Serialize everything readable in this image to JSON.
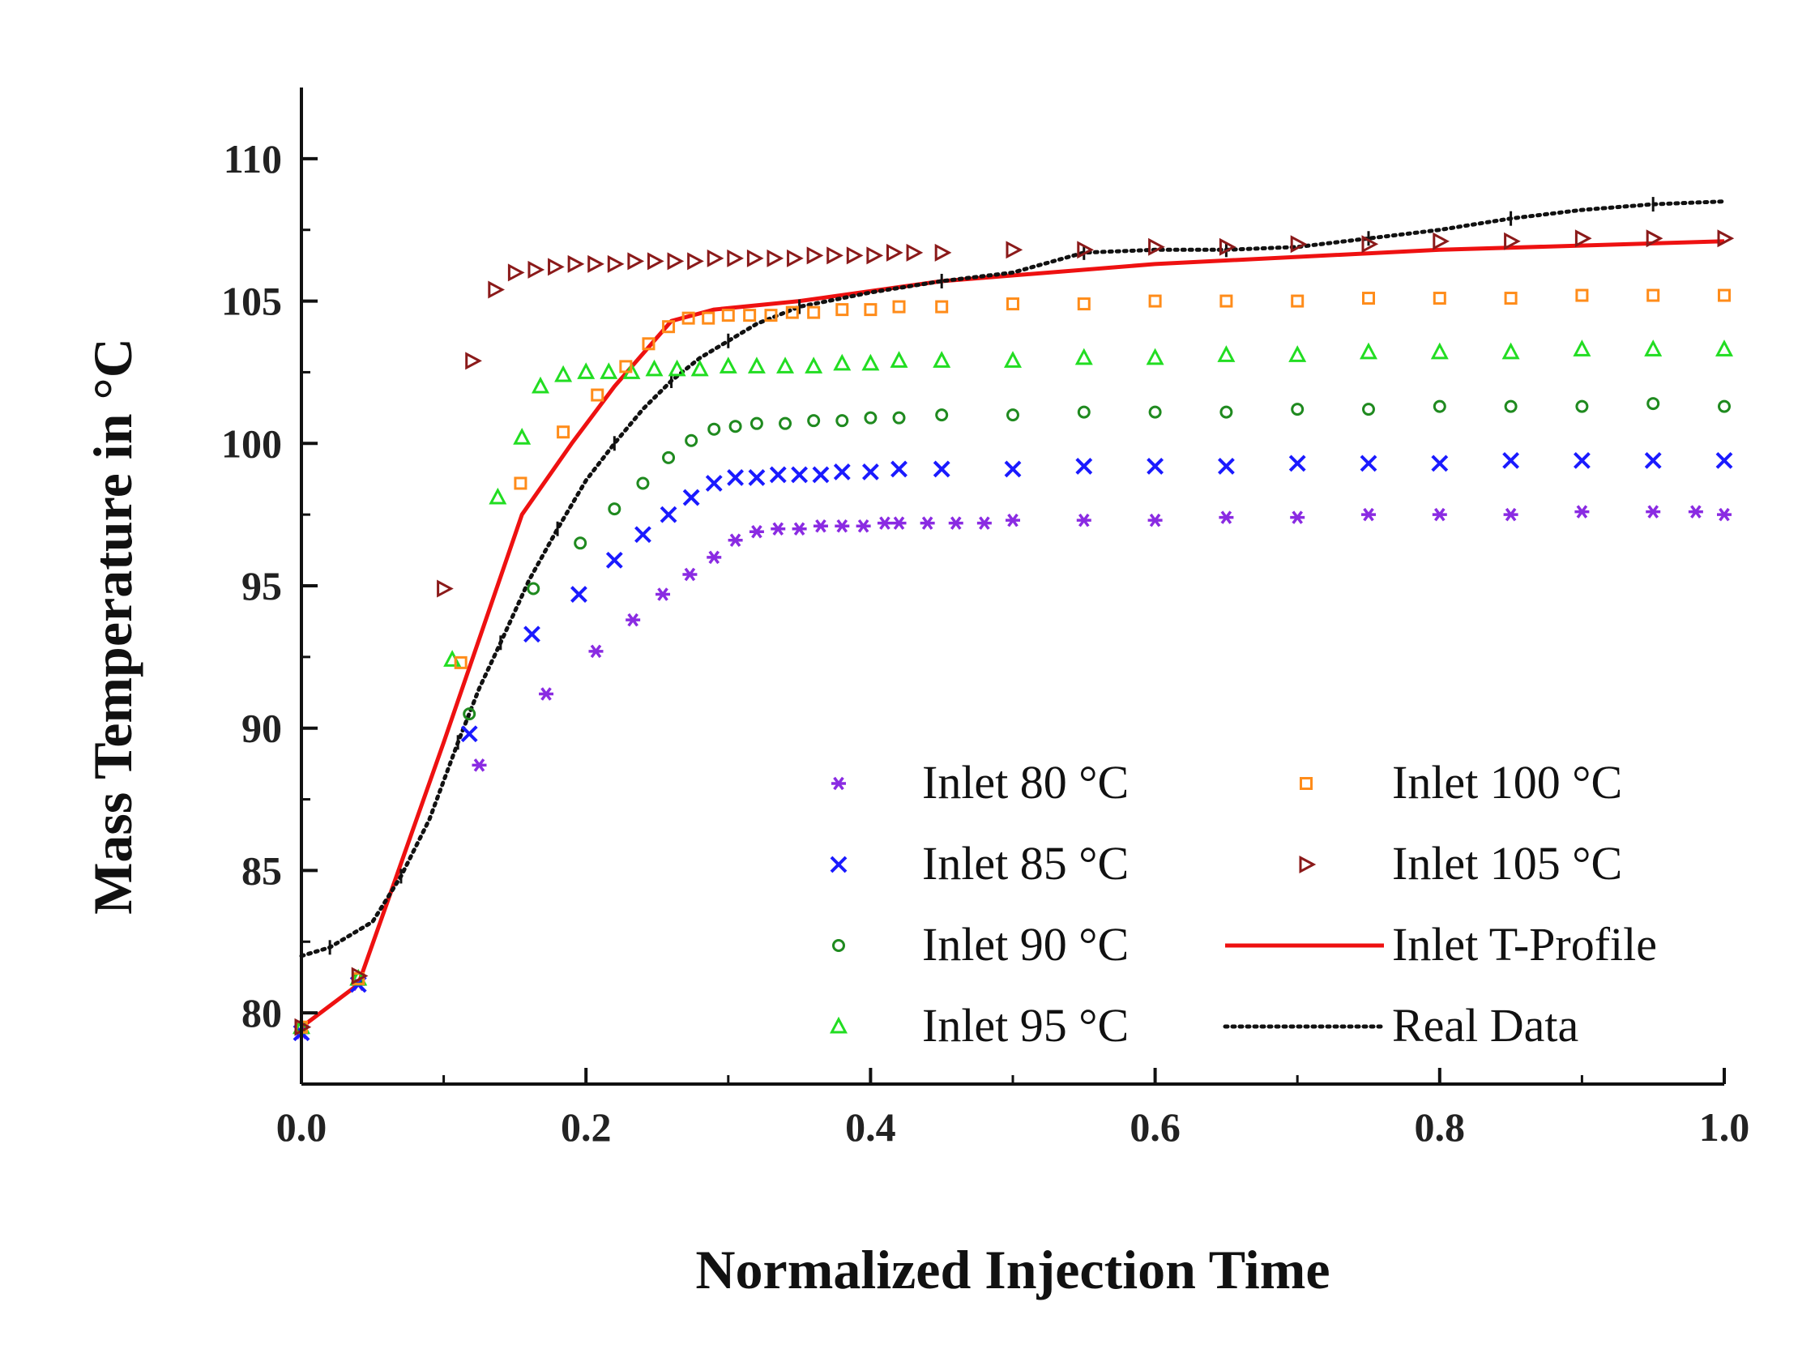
{
  "chart_data": {
    "type": "line",
    "title": "",
    "xlabel": "Normalized Injection Time",
    "ylabel": "Mass Temperature in °C",
    "xlim": [
      0.0,
      1.0
    ],
    "ylim": [
      77.5,
      112.5
    ],
    "xticks": [
      0.0,
      0.2,
      0.4,
      0.6,
      0.8,
      1.0
    ],
    "xtick_labels": [
      "0.0",
      "0.2",
      "0.4",
      "0.6",
      "0.8",
      "1.0"
    ],
    "yticks": [
      80,
      85,
      90,
      95,
      100,
      105,
      110
    ],
    "ytick_labels": [
      "80",
      "85",
      "90",
      "95",
      "100",
      "105",
      "110"
    ],
    "grid": false,
    "legend_position": "bottom-right",
    "series": [
      {
        "name": "Inlet 80 °C",
        "marker": "asterisk",
        "color": "#8a2be2",
        "x": [
          0.0,
          0.04,
          0.125,
          0.172,
          0.207,
          0.233,
          0.254,
          0.273,
          0.29,
          0.305,
          0.32,
          0.335,
          0.35,
          0.365,
          0.38,
          0.395,
          0.41,
          0.42,
          0.44,
          0.46,
          0.48,
          0.5,
          0.55,
          0.6,
          0.65,
          0.7,
          0.75,
          0.8,
          0.85,
          0.9,
          0.95,
          0.98,
          1.0
        ],
        "y": [
          79.3,
          81.0,
          88.7,
          91.2,
          92.7,
          93.8,
          94.7,
          95.4,
          96.0,
          96.6,
          96.9,
          97.0,
          97.0,
          97.1,
          97.1,
          97.1,
          97.2,
          97.2,
          97.2,
          97.2,
          97.2,
          97.3,
          97.3,
          97.3,
          97.4,
          97.4,
          97.5,
          97.5,
          97.5,
          97.6,
          97.6,
          97.6,
          97.5
        ]
      },
      {
        "name": "Inlet 85 °C",
        "marker": "x",
        "color": "#1a1aff",
        "x": [
          0.0,
          0.04,
          0.118,
          0.162,
          0.195,
          0.22,
          0.24,
          0.258,
          0.274,
          0.29,
          0.305,
          0.32,
          0.335,
          0.35,
          0.365,
          0.38,
          0.4,
          0.42,
          0.45,
          0.5,
          0.55,
          0.6,
          0.65,
          0.7,
          0.75,
          0.8,
          0.85,
          0.9,
          0.95,
          1.0
        ],
        "y": [
          79.3,
          81.0,
          89.8,
          93.3,
          94.7,
          95.9,
          96.8,
          97.5,
          98.1,
          98.6,
          98.8,
          98.8,
          98.9,
          98.9,
          98.9,
          99.0,
          99.0,
          99.1,
          99.1,
          99.1,
          99.2,
          99.2,
          99.2,
          99.3,
          99.3,
          99.3,
          99.4,
          99.4,
          99.4,
          99.4
        ]
      },
      {
        "name": "Inlet 90 °C",
        "marker": "circle",
        "color": "#1f8a1f",
        "x": [
          0.0,
          0.04,
          0.118,
          0.163,
          0.196,
          0.22,
          0.24,
          0.258,
          0.274,
          0.29,
          0.305,
          0.32,
          0.34,
          0.36,
          0.38,
          0.4,
          0.42,
          0.45,
          0.5,
          0.55,
          0.6,
          0.65,
          0.7,
          0.75,
          0.8,
          0.85,
          0.9,
          0.95,
          1.0
        ],
        "y": [
          79.5,
          81.2,
          90.5,
          94.9,
          96.5,
          97.7,
          98.6,
          99.5,
          100.1,
          100.5,
          100.6,
          100.7,
          100.7,
          100.8,
          100.8,
          100.9,
          100.9,
          101.0,
          101.0,
          101.1,
          101.1,
          101.1,
          101.2,
          101.2,
          101.3,
          101.3,
          101.3,
          101.4,
          101.3
        ]
      },
      {
        "name": "Inlet 95 °C",
        "marker": "triangle-up",
        "color": "#22dd22",
        "x": [
          0.0,
          0.04,
          0.106,
          0.138,
          0.155,
          0.168,
          0.184,
          0.2,
          0.216,
          0.232,
          0.248,
          0.264,
          0.28,
          0.3,
          0.32,
          0.34,
          0.36,
          0.38,
          0.4,
          0.42,
          0.45,
          0.5,
          0.55,
          0.6,
          0.65,
          0.7,
          0.75,
          0.8,
          0.85,
          0.9,
          0.95,
          1.0
        ],
        "y": [
          79.5,
          81.2,
          92.4,
          98.1,
          100.2,
          102.0,
          102.4,
          102.5,
          102.5,
          102.5,
          102.6,
          102.6,
          102.6,
          102.7,
          102.7,
          102.7,
          102.7,
          102.8,
          102.8,
          102.9,
          102.9,
          102.9,
          103.0,
          103.0,
          103.1,
          103.1,
          103.2,
          103.2,
          103.2,
          103.3,
          103.3,
          103.3
        ]
      },
      {
        "name": "Inlet 100 °C",
        "marker": "square",
        "color": "#ff8c1a",
        "x": [
          0.0,
          0.04,
          0.112,
          0.154,
          0.184,
          0.208,
          0.228,
          0.244,
          0.258,
          0.272,
          0.286,
          0.3,
          0.315,
          0.33,
          0.345,
          0.36,
          0.38,
          0.4,
          0.42,
          0.45,
          0.5,
          0.55,
          0.6,
          0.65,
          0.7,
          0.75,
          0.8,
          0.85,
          0.9,
          0.95,
          1.0
        ],
        "y": [
          79.5,
          81.2,
          92.3,
          98.6,
          100.4,
          101.7,
          102.7,
          103.5,
          104.1,
          104.4,
          104.4,
          104.5,
          104.5,
          104.5,
          104.6,
          104.6,
          104.7,
          104.7,
          104.8,
          104.8,
          104.9,
          104.9,
          105.0,
          105.0,
          105.0,
          105.1,
          105.1,
          105.1,
          105.2,
          105.2,
          105.2
        ]
      },
      {
        "name": "Inlet 105 °C",
        "marker": "triangle-right",
        "color": "#8b1a1a",
        "x": [
          0.0,
          0.04,
          0.1,
          0.12,
          0.136,
          0.15,
          0.164,
          0.178,
          0.192,
          0.206,
          0.22,
          0.234,
          0.248,
          0.262,
          0.276,
          0.29,
          0.304,
          0.318,
          0.332,
          0.346,
          0.36,
          0.374,
          0.388,
          0.402,
          0.416,
          0.43,
          0.45,
          0.5,
          0.55,
          0.6,
          0.65,
          0.7,
          0.75,
          0.8,
          0.85,
          0.9,
          0.95,
          1.0
        ],
        "y": [
          79.5,
          81.3,
          94.9,
          102.9,
          105.4,
          106.0,
          106.1,
          106.2,
          106.3,
          106.3,
          106.3,
          106.4,
          106.4,
          106.4,
          106.4,
          106.5,
          106.5,
          106.5,
          106.5,
          106.5,
          106.6,
          106.6,
          106.6,
          106.6,
          106.7,
          106.7,
          106.7,
          106.8,
          106.8,
          106.9,
          106.9,
          107.0,
          107.0,
          107.1,
          107.1,
          107.2,
          107.2,
          107.2
        ]
      },
      {
        "name": "Inlet T-Profile",
        "marker": "line",
        "color": "#ee1111",
        "x": [
          0.0,
          0.04,
          0.1,
          0.155,
          0.19,
          0.22,
          0.26,
          0.29,
          0.35,
          0.45,
          0.6,
          0.8,
          1.0
        ],
        "y": [
          79.5,
          81.0,
          89.5,
          97.5,
          100.0,
          102.0,
          104.3,
          104.7,
          105.0,
          105.7,
          106.3,
          106.8,
          107.1
        ]
      },
      {
        "name": "Real Data",
        "marker": "dotted-line",
        "color": "#111111",
        "x": [
          0.0,
          0.02,
          0.05,
          0.07,
          0.09,
          0.11,
          0.125,
          0.14,
          0.16,
          0.18,
          0.2,
          0.22,
          0.24,
          0.26,
          0.28,
          0.3,
          0.32,
          0.35,
          0.4,
          0.45,
          0.5,
          0.55,
          0.6,
          0.65,
          0.7,
          0.75,
          0.8,
          0.85,
          0.9,
          0.95,
          1.0
        ],
        "y": [
          82.0,
          82.3,
          83.2,
          84.8,
          86.8,
          89.5,
          91.4,
          93.0,
          95.2,
          97.0,
          98.7,
          100.0,
          101.2,
          102.2,
          103.0,
          103.6,
          104.2,
          104.8,
          105.3,
          105.7,
          106.0,
          106.7,
          106.8,
          106.8,
          106.9,
          107.2,
          107.5,
          107.9,
          108.2,
          108.4,
          108.5
        ]
      }
    ]
  }
}
